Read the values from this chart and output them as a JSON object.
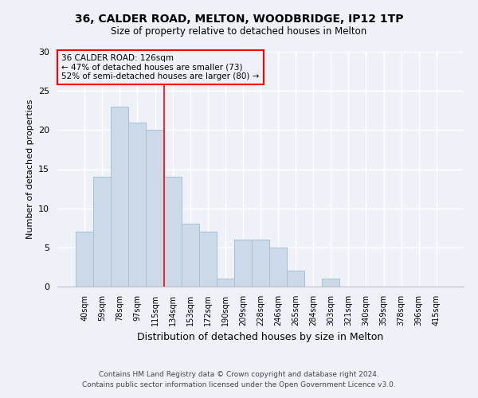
{
  "title1": "36, CALDER ROAD, MELTON, WOODBRIDGE, IP12 1TP",
  "title2": "Size of property relative to detached houses in Melton",
  "xlabel": "Distribution of detached houses by size in Melton",
  "ylabel": "Number of detached properties",
  "categories": [
    "40sqm",
    "59sqm",
    "78sqm",
    "97sqm",
    "115sqm",
    "134sqm",
    "153sqm",
    "172sqm",
    "190sqm",
    "209sqm",
    "228sqm",
    "246sqm",
    "265sqm",
    "284sqm",
    "303sqm",
    "321sqm",
    "340sqm",
    "359sqm",
    "378sqm",
    "396sqm",
    "415sqm"
  ],
  "values": [
    7,
    14,
    23,
    21,
    20,
    14,
    8,
    7,
    1,
    6,
    6,
    5,
    2,
    0,
    1,
    0,
    0,
    0,
    0,
    0,
    0
  ],
  "bar_color": "#ccd9e8",
  "bar_edge_color": "#a8bfd4",
  "vline_x_idx": 4.5,
  "annotation_title": "36 CALDER ROAD: 126sqm",
  "annotation_line1": "← 47% of detached houses are smaller (73)",
  "annotation_line2": "52% of semi-detached houses are larger (80) →",
  "ylim": [
    0,
    30
  ],
  "yticks": [
    0,
    5,
    10,
    15,
    20,
    25,
    30
  ],
  "footnote1": "Contains HM Land Registry data © Crown copyright and database right 2024.",
  "footnote2": "Contains public sector information licensed under the Open Government Licence v3.0.",
  "bg_color": "#eef2f8"
}
